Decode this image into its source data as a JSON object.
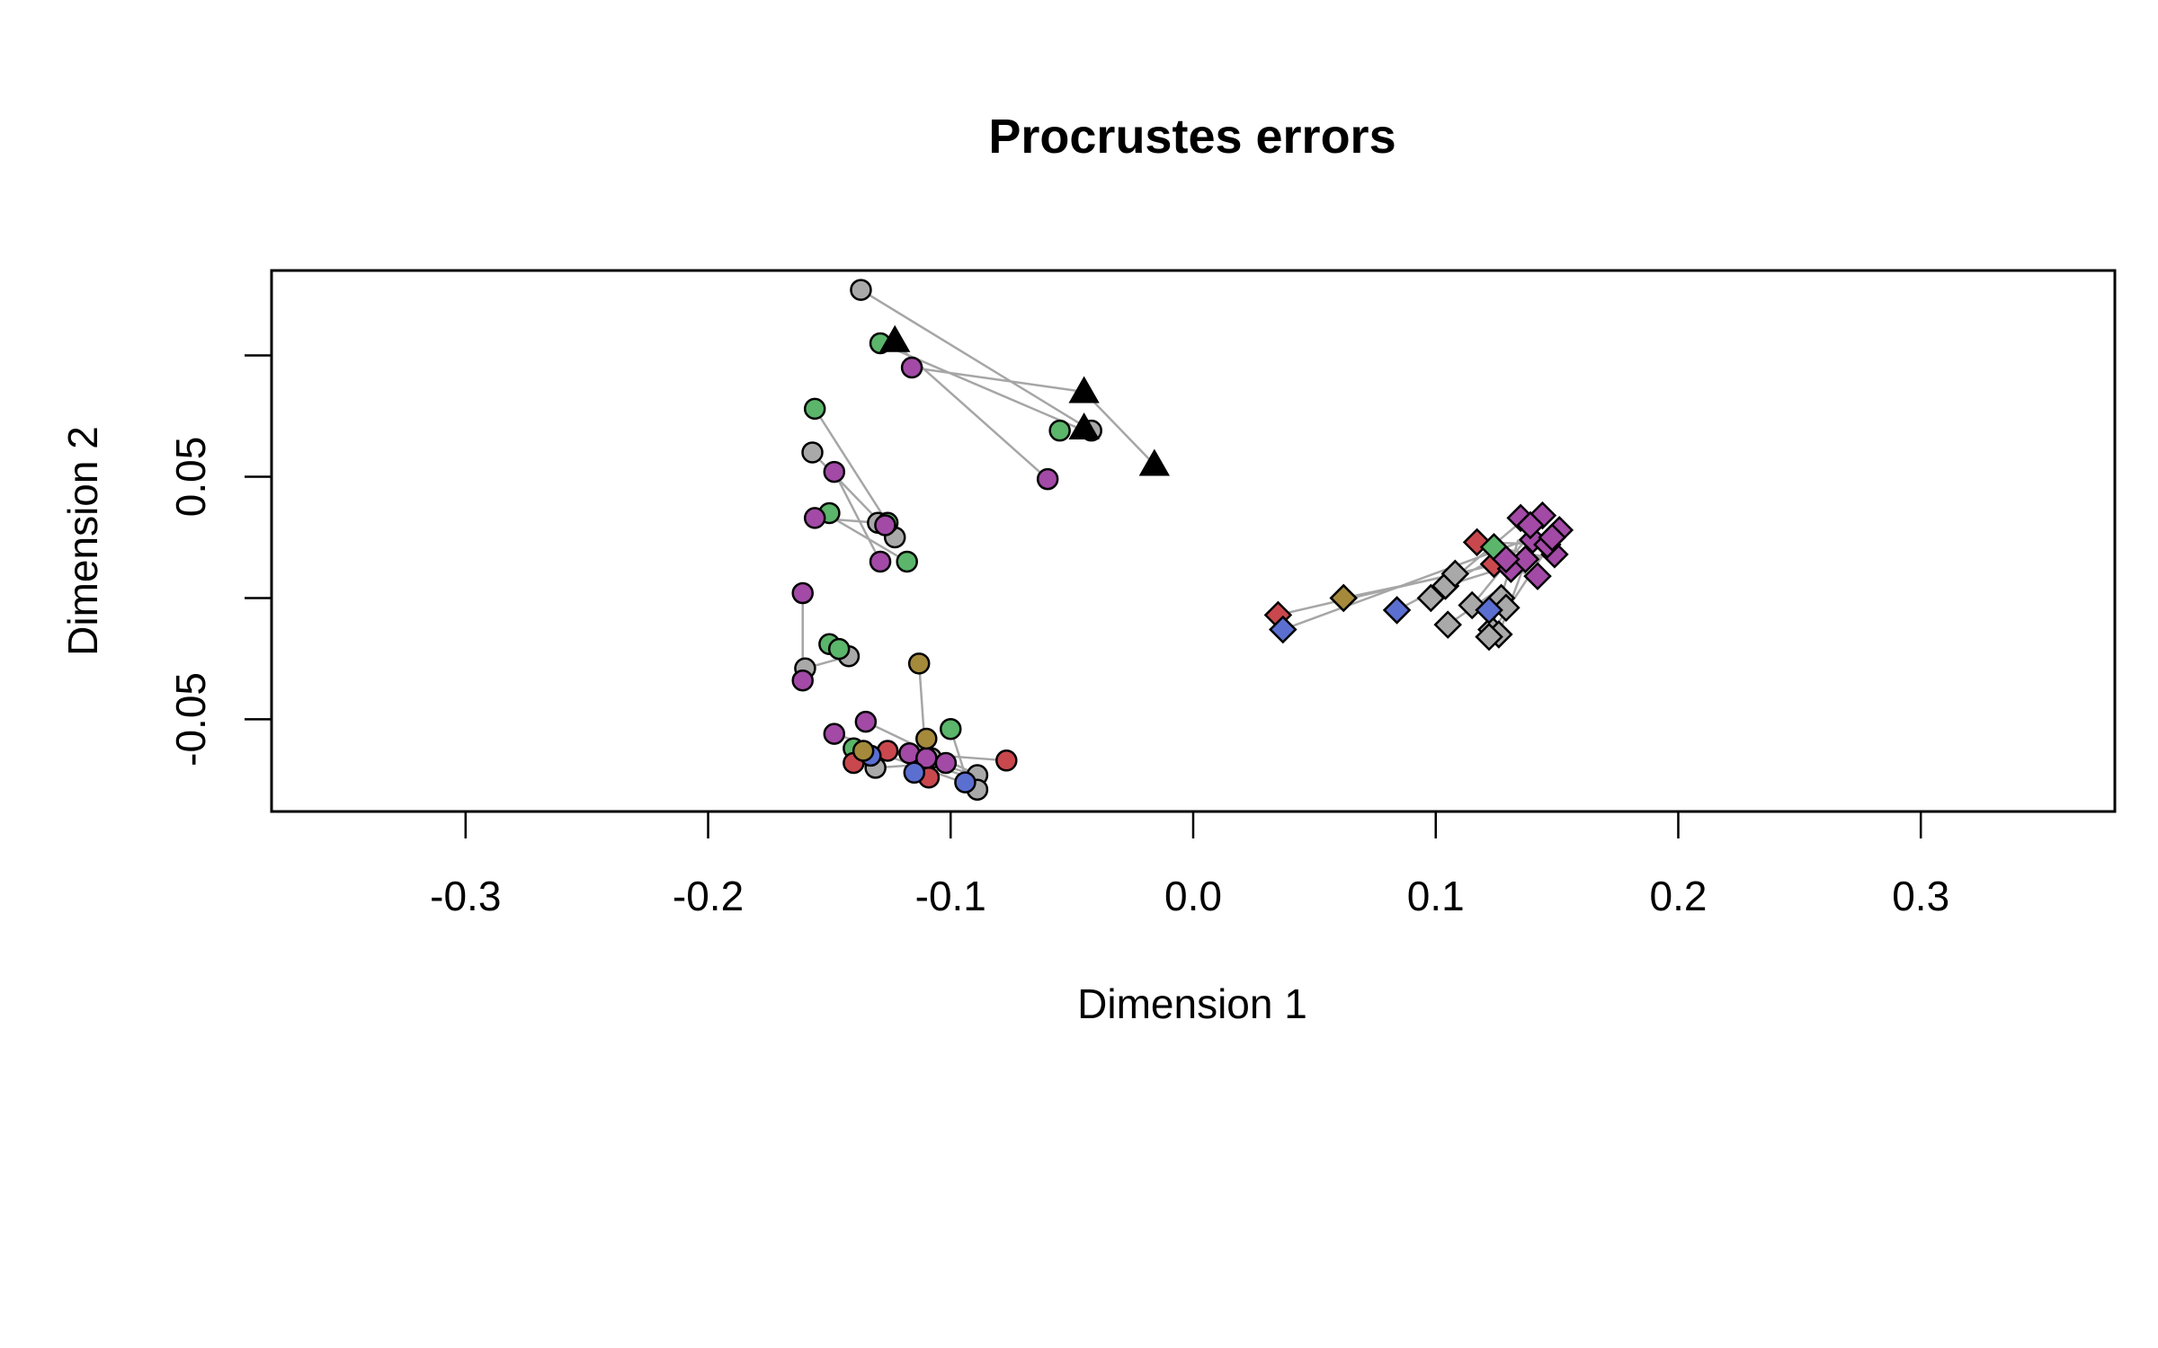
{
  "chart_data": {
    "type": "scatter",
    "title": "Procrustes errors",
    "xlabel": "Dimension 1",
    "ylabel": "Dimension 2",
    "xlim": [
      -0.38,
      0.38
    ],
    "ylim": [
      -0.088,
      0.135
    ],
    "xticks": [
      -0.3,
      -0.2,
      -0.1,
      0.0,
      0.1,
      0.2,
      0.3
    ],
    "xtick_labels": [
      "-0.3",
      "-0.2",
      "-0.1",
      "0.0",
      "0.1",
      "0.2",
      "0.3"
    ],
    "yticks": [
      -0.05,
      0.0,
      0.05,
      0.1
    ],
    "ytick_labels": [
      "-0.05",
      "",
      "0.05",
      ""
    ],
    "grid": false,
    "legend": "none",
    "colors": {
      "gray": "#a9a9a9",
      "green": "#5bb56a",
      "purple": "#a24aa6",
      "red": "#c9484e",
      "blue": "#5b6fd1",
      "gold": "#a58a3c",
      "black": "#000000",
      "connector": "#a6a6a6"
    },
    "connectors": [
      {
        "from": [
          -0.137,
          0.127
        ],
        "to": [
          -0.042,
          0.069
        ]
      },
      {
        "from": [
          -0.129,
          0.105
        ],
        "to": [
          -0.045,
          0.069
        ]
      },
      {
        "from": [
          -0.116,
          0.095
        ],
        "to": [
          -0.045,
          0.085
        ]
      },
      {
        "from": [
          -0.123,
          0.105
        ],
        "to": [
          -0.06,
          0.049
        ]
      },
      {
        "from": [
          -0.045,
          0.085
        ],
        "to": [
          -0.016,
          0.055
        ]
      },
      {
        "from": [
          -0.156,
          0.078
        ],
        "to": [
          -0.126,
          0.031
        ]
      },
      {
        "from": [
          -0.157,
          0.06
        ],
        "to": [
          -0.123,
          0.025
        ]
      },
      {
        "from": [
          -0.148,
          0.052
        ],
        "to": [
          -0.129,
          0.015
        ]
      },
      {
        "from": [
          -0.152,
          0.035
        ],
        "to": [
          -0.118,
          0.015
        ]
      },
      {
        "from": [
          -0.156,
          0.033
        ],
        "to": [
          -0.13,
          0.031
        ]
      },
      {
        "from": [
          -0.161,
          0.002
        ],
        "to": [
          -0.161,
          -0.034
        ]
      },
      {
        "from": [
          -0.16,
          -0.029
        ],
        "to": [
          -0.142,
          -0.024
        ]
      },
      {
        "from": [
          -0.15,
          -0.019
        ],
        "to": [
          -0.141,
          -0.024
        ]
      },
      {
        "from": [
          -0.113,
          -0.027
        ],
        "to": [
          -0.11,
          -0.07
        ]
      },
      {
        "from": [
          -0.135,
          -0.051
        ],
        "to": [
          -0.089,
          -0.073
        ]
      },
      {
        "from": [
          -0.148,
          -0.056
        ],
        "to": [
          -0.095,
          -0.073
        ]
      },
      {
        "from": [
          -0.143,
          -0.062
        ],
        "to": [
          -0.077,
          -0.067
        ]
      },
      {
        "from": [
          -0.14,
          -0.067
        ],
        "to": [
          -0.111,
          -0.063
        ]
      },
      {
        "from": [
          -0.132,
          -0.063
        ],
        "to": [
          -0.092,
          -0.077
        ]
      },
      {
        "from": [
          -0.1,
          -0.054
        ],
        "to": [
          -0.093,
          -0.076
        ]
      },
      {
        "from": [
          -0.11,
          -0.058
        ],
        "to": [
          -0.112,
          -0.071
        ]
      },
      {
        "from": [
          -0.131,
          -0.07
        ],
        "to": [
          -0.102,
          -0.068
        ]
      },
      {
        "from": [
          -0.124,
          -0.063
        ],
        "to": [
          -0.093,
          -0.072
        ]
      },
      {
        "from": [
          0.035,
          -0.007
        ],
        "to": [
          0.13,
          0.015
        ]
      },
      {
        "from": [
          0.037,
          -0.013
        ],
        "to": [
          0.14,
          0.025
        ]
      },
      {
        "from": [
          0.062,
          0.0
        ],
        "to": [
          0.11,
          0.01
        ]
      },
      {
        "from": [
          0.084,
          -0.005
        ],
        "to": [
          0.124,
          0.016
        ]
      },
      {
        "from": [
          0.098,
          0.0
        ],
        "to": [
          0.137,
          0.033
        ]
      },
      {
        "from": [
          0.104,
          0.005
        ],
        "to": [
          0.146,
          0.018
        ]
      },
      {
        "from": [
          0.115,
          -0.003
        ],
        "to": [
          0.142,
          0.03
        ]
      },
      {
        "from": [
          0.123,
          -0.013
        ],
        "to": [
          0.134,
          0.024
        ]
      },
      {
        "from": [
          0.126,
          -0.015
        ],
        "to": [
          0.144,
          0.034
        ]
      },
      {
        "from": [
          0.122,
          -0.016
        ],
        "to": [
          0.149,
          0.025
        ]
      },
      {
        "from": [
          0.105,
          -0.011
        ],
        "to": [
          0.128,
          0.005
        ]
      },
      {
        "from": [
          0.117,
          0.023
        ],
        "to": [
          0.15,
          0.022
        ]
      },
      {
        "from": [
          0.124,
          0.021
        ],
        "to": [
          0.15,
          0.016
        ]
      },
      {
        "from": [
          0.127,
          0.017
        ],
        "to": [
          0.137,
          0.01
        ]
      }
    ],
    "series": [
      {
        "marker": "circle",
        "color": "gray",
        "x": [
          -0.137,
          -0.157,
          -0.042,
          -0.13,
          -0.123,
          -0.16,
          -0.142,
          -0.108,
          -0.089,
          -0.089,
          -0.131,
          -0.112
        ],
        "y": [
          0.127,
          0.06,
          0.069,
          0.031,
          0.025,
          -0.029,
          -0.024,
          -0.066,
          -0.073,
          -0.079,
          -0.07,
          -0.067
        ]
      },
      {
        "marker": "circle",
        "color": "green",
        "x": [
          -0.129,
          -0.055,
          -0.156,
          -0.15,
          -0.126,
          -0.118,
          -0.15,
          -0.146,
          -0.1,
          -0.14,
          -0.11
        ],
        "y": [
          0.105,
          0.069,
          0.078,
          0.035,
          0.031,
          0.015,
          -0.019,
          -0.021,
          -0.054,
          -0.062,
          -0.066
        ]
      },
      {
        "marker": "circle",
        "color": "purple",
        "x": [
          -0.116,
          -0.06,
          -0.148,
          -0.156,
          -0.129,
          -0.127,
          -0.161,
          -0.161,
          -0.135,
          -0.148,
          -0.117,
          -0.102,
          -0.11
        ],
        "y": [
          0.095,
          0.049,
          0.052,
          0.033,
          0.015,
          0.03,
          0.002,
          -0.034,
          -0.051,
          -0.056,
          -0.064,
          -0.068,
          -0.066
        ]
      },
      {
        "marker": "circle",
        "color": "red",
        "x": [
          -0.077,
          -0.14,
          -0.126,
          -0.109
        ],
        "y": [
          -0.067,
          -0.068,
          -0.063,
          -0.074
        ]
      },
      {
        "marker": "circle",
        "color": "blue",
        "x": [
          -0.094,
          -0.115,
          -0.133
        ],
        "y": [
          -0.076,
          -0.072,
          -0.065
        ]
      },
      {
        "marker": "circle",
        "color": "gold",
        "x": [
          -0.113,
          -0.11,
          -0.136
        ],
        "y": [
          -0.027,
          -0.058,
          -0.063
        ]
      },
      {
        "marker": "triangle",
        "color": "black",
        "x": [
          -0.123,
          -0.045,
          -0.016,
          -0.045
        ],
        "y": [
          0.106,
          0.085,
          0.055,
          0.07
        ]
      },
      {
        "marker": "diamond",
        "color": "gray",
        "x": [
          0.098,
          0.104,
          0.108,
          0.115,
          0.123,
          0.126,
          0.122,
          0.105,
          0.127,
          0.129
        ],
        "y": [
          0.0,
          0.005,
          0.01,
          -0.003,
          -0.013,
          -0.015,
          -0.016,
          -0.011,
          0.0,
          -0.004
        ]
      },
      {
        "marker": "diamond",
        "color": "red",
        "x": [
          0.035,
          0.117,
          0.124
        ],
        "y": [
          -0.007,
          0.023,
          0.014
        ]
      },
      {
        "marker": "diamond",
        "color": "blue",
        "x": [
          0.037,
          0.084,
          0.122
        ],
        "y": [
          -0.013,
          -0.005,
          -0.005
        ]
      },
      {
        "marker": "diamond",
        "color": "gold",
        "x": [
          0.062
        ],
        "y": [
          0.0
        ]
      },
      {
        "marker": "diamond",
        "color": "green",
        "x": [
          0.124
        ],
        "y": [
          0.021
        ]
      },
      {
        "marker": "diamond",
        "color": "purple",
        "x": [
          0.135,
          0.144,
          0.151,
          0.14,
          0.149,
          0.142,
          0.131,
          0.146,
          0.137,
          0.129,
          0.148,
          0.139
        ],
        "y": [
          0.033,
          0.034,
          0.028,
          0.024,
          0.018,
          0.009,
          0.012,
          0.022,
          0.016,
          0.016,
          0.025,
          0.03
        ]
      }
    ]
  }
}
